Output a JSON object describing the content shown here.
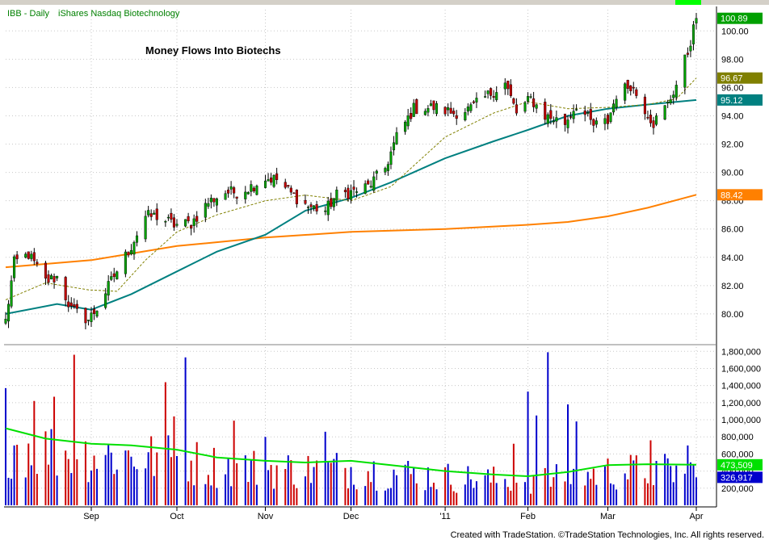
{
  "window": {
    "symbol_label": "IBB - Daily",
    "description": "iShares Nasdaq Biotechnology"
  },
  "footer": {
    "credit": "Created with TradeStation. ©TradeStation Technologies, Inc. All rights reserved."
  },
  "colors": {
    "background": "#ffffff",
    "grid": "#c8c8c8",
    "up_bar": "#00a000",
    "down_bar": "#c00000",
    "ma_fast": "#808000",
    "ma_mid": "#008080",
    "ma_slow": "#ff8000",
    "volume_avg": "#00e000",
    "volume_up": "#cc0000",
    "volume_down": "#0000cc",
    "header_text": "#008000"
  },
  "chart_data": [
    {
      "type": "candlestick",
      "title": "Money Flows Into Biotechs",
      "x_tick_labels": [
        "Sep",
        "Oct",
        "Nov",
        "Dec",
        "'11",
        "Feb",
        "Mar",
        "Apr"
      ],
      "x_tick_dates": [
        "2010-09-01",
        "2010-10-01",
        "2010-11-01",
        "2010-12-01",
        "2011-01-03",
        "2011-02-01",
        "2011-03-01",
        "2011-04-01"
      ],
      "x_range": [
        "2010-08-02",
        "2011-04-01"
      ],
      "y_ticks": [
        80,
        82,
        84,
        86,
        88,
        90,
        92,
        94,
        96,
        98,
        100
      ],
      "y_tick_labels": [
        "80.00",
        "82.00",
        "84.00",
        "86.00",
        "88.00",
        "90.00",
        "92.00",
        "94.00",
        "96.00",
        "98.00",
        "100.00"
      ],
      "ylim": [
        78.0,
        101.5
      ],
      "grid": true,
      "price_anchors": [
        [
          "2010-08-02",
          79.5
        ],
        [
          "2010-08-05",
          83.6
        ],
        [
          "2010-08-10",
          84.2
        ],
        [
          "2010-08-16",
          82.3
        ],
        [
          "2010-08-20",
          82.6
        ],
        [
          "2010-08-25",
          80.3
        ],
        [
          "2010-08-31",
          79.6
        ],
        [
          "2010-09-03",
          80.4
        ],
        [
          "2010-09-09",
          82.7
        ],
        [
          "2010-09-15",
          84.8
        ],
        [
          "2010-09-20",
          86.9
        ],
        [
          "2010-09-24",
          86.9
        ],
        [
          "2010-09-30",
          86.3
        ],
        [
          "2010-10-06",
          86.4
        ],
        [
          "2010-10-12",
          87.9
        ],
        [
          "2010-10-18",
          88.6
        ],
        [
          "2010-10-22",
          88.6
        ],
        [
          "2010-10-27",
          89.0
        ],
        [
          "2010-11-01",
          89.6
        ],
        [
          "2010-11-05",
          89.5
        ],
        [
          "2010-11-10",
          88.5
        ],
        [
          "2010-11-16",
          87.6
        ],
        [
          "2010-11-22",
          87.3
        ],
        [
          "2010-11-26",
          88.4
        ],
        [
          "2010-12-01",
          88.6
        ],
        [
          "2010-12-07",
          89.0
        ],
        [
          "2010-12-13",
          90.3
        ],
        [
          "2010-12-17",
          92.5
        ],
        [
          "2010-12-23",
          94.5
        ],
        [
          "2010-12-30",
          94.6
        ],
        [
          "2011-01-06",
          94.2
        ],
        [
          "2011-01-12",
          94.5
        ],
        [
          "2011-01-19",
          95.6
        ],
        [
          "2011-01-24",
          96.3
        ],
        [
          "2011-01-28",
          94.2
        ],
        [
          "2011-02-02",
          95.2
        ],
        [
          "2011-02-07",
          94.0
        ],
        [
          "2011-02-14",
          93.5
        ],
        [
          "2011-02-18",
          94.8
        ],
        [
          "2011-02-24",
          93.3
        ],
        [
          "2011-03-01",
          93.6
        ],
        [
          "2011-03-04",
          95.5
        ],
        [
          "2011-03-09",
          96.2
        ],
        [
          "2011-03-14",
          94.5
        ],
        [
          "2011-03-17",
          93.5
        ],
        [
          "2011-03-22",
          94.8
        ],
        [
          "2011-03-25",
          96.2
        ],
        [
          "2011-03-29",
          98.5
        ],
        [
          "2011-04-01",
          100.89
        ]
      ],
      "moving_averages": [
        {
          "last_label": "96.67",
          "color": "#808000",
          "points": [
            [
              "2010-08-02",
              81.0
            ],
            [
              "2010-08-16",
              82.2
            ],
            [
              "2010-08-31",
              81.7
            ],
            [
              "2010-09-10",
              81.6
            ],
            [
              "2010-09-20",
              83.8
            ],
            [
              "2010-10-01",
              85.8
            ],
            [
              "2010-10-15",
              87.0
            ],
            [
              "2010-11-01",
              88.0
            ],
            [
              "2010-11-15",
              88.4
            ],
            [
              "2010-12-01",
              88.0
            ],
            [
              "2010-12-15",
              89.0
            ],
            [
              "2011-01-03",
              92.5
            ],
            [
              "2011-01-20",
              94.2
            ],
            [
              "2011-02-01",
              95.0
            ],
            [
              "2011-02-15",
              94.5
            ],
            [
              "2011-03-01",
              94.6
            ],
            [
              "2011-03-15",
              94.8
            ],
            [
              "2011-03-25",
              95.2
            ],
            [
              "2011-04-01",
              96.67
            ]
          ]
        },
        {
          "last_label": "95.12",
          "color": "#008080",
          "points": [
            [
              "2010-08-02",
              80.0
            ],
            [
              "2010-08-20",
              80.7
            ],
            [
              "2010-09-01",
              80.3
            ],
            [
              "2010-09-15",
              81.4
            ],
            [
              "2010-10-01",
              83.0
            ],
            [
              "2010-10-15",
              84.4
            ],
            [
              "2010-11-01",
              85.6
            ],
            [
              "2010-11-15",
              87.3
            ],
            [
              "2010-12-01",
              88.2
            ],
            [
              "2010-12-15",
              89.3
            ],
            [
              "2011-01-03",
              91.0
            ],
            [
              "2011-01-20",
              92.2
            ],
            [
              "2011-02-01",
              93.0
            ],
            [
              "2011-02-15",
              94.0
            ],
            [
              "2011-03-01",
              94.5
            ],
            [
              "2011-03-15",
              94.8
            ],
            [
              "2011-04-01",
              95.12
            ]
          ]
        },
        {
          "last_label": "88.42",
          "color": "#ff8000",
          "points": [
            [
              "2010-08-02",
              83.3
            ],
            [
              "2010-09-01",
              83.8
            ],
            [
              "2010-10-01",
              84.8
            ],
            [
              "2010-11-01",
              85.4
            ],
            [
              "2010-12-01",
              85.8
            ],
            [
              "2011-01-03",
              86.0
            ],
            [
              "2011-02-01",
              86.3
            ],
            [
              "2011-02-15",
              86.5
            ],
            [
              "2011-03-01",
              86.9
            ],
            [
              "2011-03-15",
              87.5
            ],
            [
              "2011-04-01",
              88.42
            ]
          ]
        }
      ],
      "last_price_label": "100.89"
    },
    {
      "type": "bar",
      "y_ticks": [
        200000,
        400000,
        600000,
        800000,
        1000000,
        1200000,
        1400000,
        1600000,
        1800000
      ],
      "y_tick_labels": [
        "200,000",
        "400,000",
        "600,000",
        "800,000",
        "1,000,000",
        "1,200,000",
        "1,400,000",
        "1,600,000",
        "1,800,000"
      ],
      "ylim": [
        0,
        1850000
      ],
      "grid": true,
      "average_label": "473,509",
      "last_volume_label": "326,917",
      "average_points": [
        [
          "2010-08-02",
          900000
        ],
        [
          "2010-08-16",
          780000
        ],
        [
          "2010-09-01",
          720000
        ],
        [
          "2010-09-15",
          700000
        ],
        [
          "2010-10-01",
          650000
        ],
        [
          "2010-10-15",
          560000
        ],
        [
          "2010-11-01",
          520000
        ],
        [
          "2010-11-15",
          500000
        ],
        [
          "2010-12-01",
          520000
        ],
        [
          "2010-12-15",
          470000
        ],
        [
          "2011-01-03",
          400000
        ],
        [
          "2011-01-20",
          360000
        ],
        [
          "2011-02-01",
          340000
        ],
        [
          "2011-02-15",
          390000
        ],
        [
          "2011-03-01",
          470000
        ],
        [
          "2011-03-15",
          480000
        ],
        [
          "2011-04-01",
          473509
        ]
      ],
      "spikes": [
        [
          "2010-08-02",
          1370000
        ],
        [
          "2010-08-12",
          1220000
        ],
        [
          "2010-08-19",
          1270000
        ],
        [
          "2010-08-26",
          1760000
        ],
        [
          "2010-09-27",
          1440000
        ],
        [
          "2010-09-30",
          1040000
        ],
        [
          "2010-10-04",
          1730000
        ],
        [
          "2010-10-21",
          990000
        ],
        [
          "2010-11-01",
          800000
        ],
        [
          "2010-11-22",
          860000
        ],
        [
          "2011-01-27",
          720000
        ],
        [
          "2011-02-01",
          1330000
        ],
        [
          "2011-02-04",
          1050000
        ],
        [
          "2011-02-08",
          1790000
        ],
        [
          "2011-02-15",
          1180000
        ],
        [
          "2011-02-18",
          980000
        ],
        [
          "2011-03-16",
          760000
        ],
        [
          "2011-03-29",
          700000
        ]
      ]
    }
  ]
}
